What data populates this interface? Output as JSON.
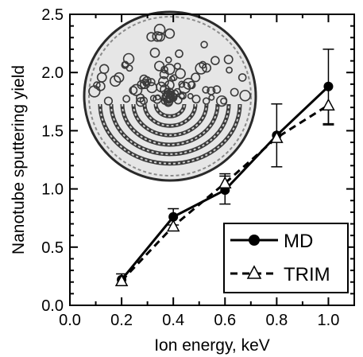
{
  "chart_data": {
    "type": "line",
    "xlabel": "Ion energy, keV",
    "ylabel": "Nanotube sputtering yield",
    "xlim": [
      0.0,
      1.1
    ],
    "ylim": [
      0.0,
      2.5
    ],
    "xticks": [
      "0.0",
      "0.2",
      "0.4",
      "0.6",
      "0.8",
      "1.0"
    ],
    "yticks": [
      "0.0",
      "0.5",
      "1.0",
      "1.5",
      "2.0",
      "2.5"
    ],
    "grid": false,
    "legend_position": "bottom-right",
    "inset": "nanotube-structure-image",
    "series": [
      {
        "name": "MD",
        "marker": "filled-circle",
        "line": "solid",
        "x": [
          0.2,
          0.4,
          0.6,
          0.8,
          1.0
        ],
        "y": [
          0.22,
          0.76,
          0.99,
          1.46,
          1.88
        ],
        "yerr_low": [
          0.05,
          0.07,
          0.12,
          0.27,
          0.32
        ],
        "yerr_high": [
          0.05,
          0.07,
          0.12,
          0.27,
          0.32
        ]
      },
      {
        "name": "TRIM",
        "marker": "open-triangle",
        "line": "dashed",
        "x": [
          0.2,
          0.4,
          0.6,
          0.8,
          1.0
        ],
        "y": [
          0.21,
          0.68,
          1.05,
          1.44,
          1.72
        ],
        "yerr_low": [
          0.0,
          0.0,
          0.0,
          0.0,
          0.17
        ],
        "yerr_high": [
          0.0,
          0.0,
          0.08,
          0.0,
          0.0
        ]
      }
    ]
  }
}
